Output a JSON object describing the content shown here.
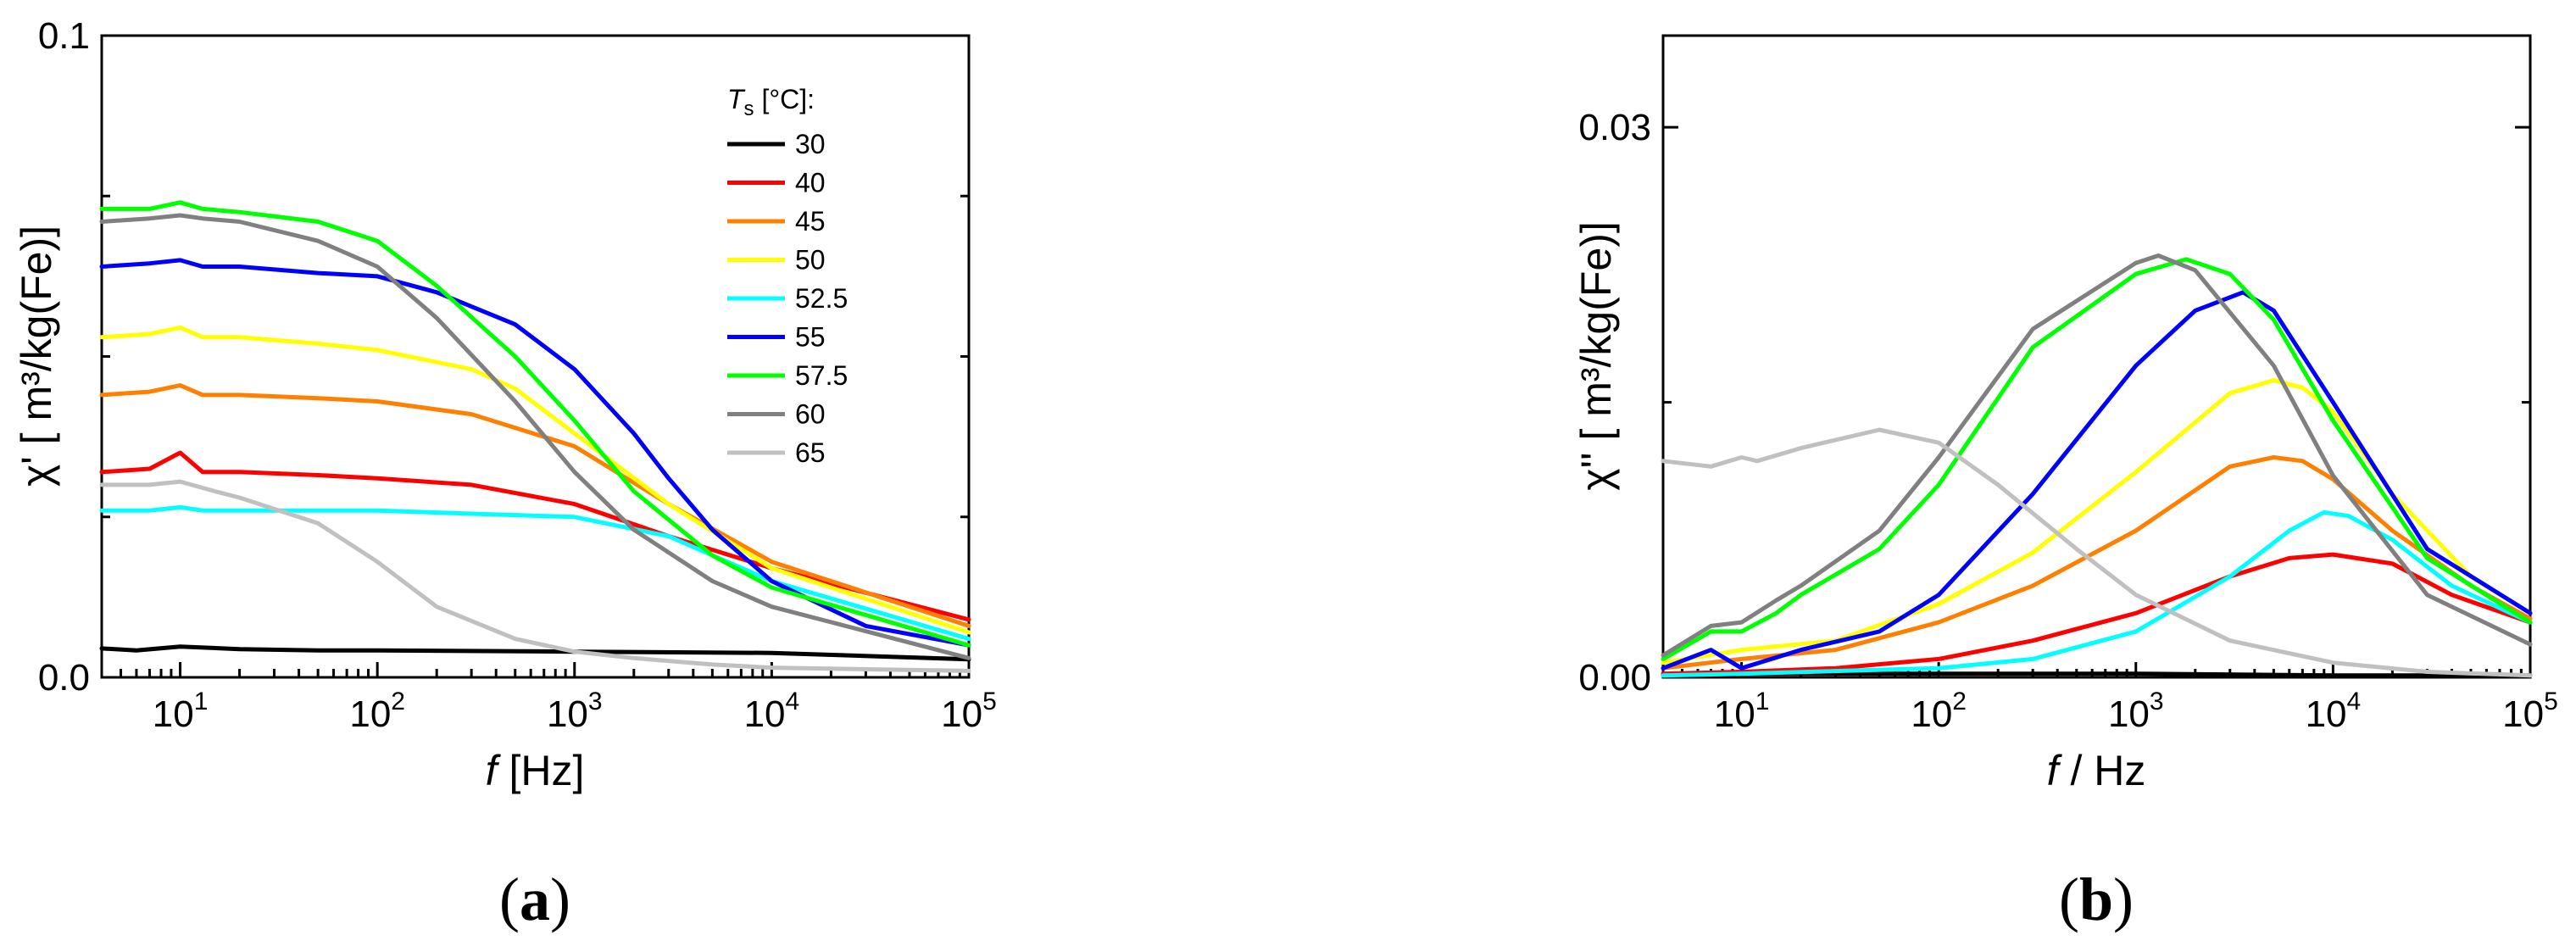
{
  "chart_data": [
    {
      "type": "line",
      "panel_label": "a",
      "xscale": "log",
      "xlim": [
        4,
        100000
      ],
      "ylim": [
        0.0,
        0.1
      ],
      "xlabel_italic": "f",
      "xlabel_rest": " [Hz]",
      "ylabel": "χ' [ m³/kg(Fe)]",
      "x_ticks": [
        {
          "value": 10,
          "base": "10",
          "exp": "1"
        },
        {
          "value": 100,
          "base": "10",
          "exp": "2"
        },
        {
          "value": 1000,
          "base": "10",
          "exp": "3"
        },
        {
          "value": 10000,
          "base": "10",
          "exp": "4"
        },
        {
          "value": 100000,
          "base": "10",
          "exp": "5"
        }
      ],
      "y_ticks": [
        {
          "value": 0.0,
          "label": "0.0"
        },
        {
          "value": 0.1,
          "label": "0.1"
        }
      ],
      "y_minor_ticks": [
        0.025,
        0.05,
        0.075
      ],
      "legend_title_italic": "T",
      "legend_title_sub": "s",
      "legend_title_rest": " [°C]:",
      "legend_position": "top-right",
      "series": [
        {
          "name": "30",
          "color": "#000000",
          "x": [
            4,
            6,
            10,
            20,
            50,
            100,
            1000,
            10000,
            100000
          ],
          "y": [
            0.0045,
            0.0042,
            0.0048,
            0.0044,
            0.0042,
            0.0042,
            0.004,
            0.0038,
            0.0028
          ]
        },
        {
          "name": "40",
          "color": "#ff0000",
          "x": [
            4,
            7,
            10,
            13,
            20,
            50,
            100,
            300,
            1000,
            3000,
            10000,
            100000
          ],
          "y": [
            0.032,
            0.0325,
            0.035,
            0.032,
            0.032,
            0.0315,
            0.031,
            0.03,
            0.027,
            0.022,
            0.017,
            0.009
          ]
        },
        {
          "name": "45",
          "color": "#ff8000",
          "x": [
            4,
            7,
            10,
            13,
            20,
            50,
            100,
            300,
            1000,
            3000,
            10000,
            100000
          ],
          "y": [
            0.044,
            0.0445,
            0.0455,
            0.044,
            0.044,
            0.0435,
            0.043,
            0.041,
            0.036,
            0.027,
            0.018,
            0.008
          ]
        },
        {
          "name": "50",
          "color": "#ffff00",
          "x": [
            4,
            7,
            10,
            13,
            20,
            50,
            100,
            300,
            500,
            1000,
            3000,
            10000,
            100000
          ],
          "y": [
            0.053,
            0.0535,
            0.0545,
            0.053,
            0.053,
            0.052,
            0.051,
            0.048,
            0.045,
            0.038,
            0.027,
            0.017,
            0.007
          ]
        },
        {
          "name": "52.5",
          "color": "#00ffff",
          "x": [
            4,
            7,
            10,
            13,
            20,
            50,
            100,
            300,
            1000,
            3000,
            10000,
            100000
          ],
          "y": [
            0.026,
            0.026,
            0.0265,
            0.026,
            0.026,
            0.026,
            0.026,
            0.0255,
            0.025,
            0.022,
            0.015,
            0.006
          ]
        },
        {
          "name": "55",
          "color": "#0000ff",
          "x": [
            4,
            7,
            10,
            13,
            20,
            50,
            100,
            200,
            500,
            1000,
            2000,
            3000,
            5000,
            10000,
            30000,
            100000
          ],
          "y": [
            0.064,
            0.0645,
            0.065,
            0.064,
            0.064,
            0.063,
            0.0625,
            0.06,
            0.055,
            0.048,
            0.038,
            0.031,
            0.023,
            0.015,
            0.008,
            0.005
          ]
        },
        {
          "name": "57.5",
          "color": "#00ff00",
          "x": [
            4,
            7,
            10,
            13,
            20,
            50,
            100,
            200,
            500,
            1000,
            2000,
            5000,
            10000,
            100000
          ],
          "y": [
            0.073,
            0.073,
            0.074,
            0.073,
            0.0725,
            0.071,
            0.068,
            0.061,
            0.05,
            0.04,
            0.029,
            0.019,
            0.014,
            0.005
          ]
        },
        {
          "name": "60",
          "color": "#808080",
          "x": [
            4,
            7,
            10,
            13,
            20,
            50,
            100,
            200,
            500,
            1000,
            2000,
            5000,
            10000,
            100000
          ],
          "y": [
            0.071,
            0.0715,
            0.072,
            0.0715,
            0.071,
            0.068,
            0.064,
            0.056,
            0.043,
            0.032,
            0.023,
            0.015,
            0.011,
            0.003
          ]
        },
        {
          "name": "65",
          "color": "#c0c0c0",
          "x": [
            4,
            7,
            10,
            15,
            20,
            50,
            100,
            200,
            500,
            1000,
            2000,
            5000,
            10000,
            100000
          ],
          "y": [
            0.03,
            0.03,
            0.0305,
            0.029,
            0.028,
            0.024,
            0.018,
            0.011,
            0.006,
            0.004,
            0.003,
            0.002,
            0.0015,
            0.001
          ]
        }
      ]
    },
    {
      "type": "line",
      "panel_label": "b",
      "xscale": "log",
      "xlim": [
        4,
        100000
      ],
      "ylim": [
        0.0,
        0.035
      ],
      "xlabel_italic": "f",
      "xlabel_rest": " / Hz",
      "ylabel": "χ'' [ m³/kg(Fe)]",
      "x_ticks": [
        {
          "value": 10,
          "base": "10",
          "exp": "1"
        },
        {
          "value": 100,
          "base": "10",
          "exp": "2"
        },
        {
          "value": 1000,
          "base": "10",
          "exp": "3"
        },
        {
          "value": 10000,
          "base": "10",
          "exp": "4"
        },
        {
          "value": 100000,
          "base": "10",
          "exp": "5"
        }
      ],
      "y_ticks": [
        {
          "value": 0.0,
          "label": "0.00"
        },
        {
          "value": 0.03,
          "label": "0.03"
        }
      ],
      "y_minor_ticks": [
        0.015
      ],
      "series": [
        {
          "name": "30",
          "color": "#000000",
          "x": [
            4,
            10,
            100,
            1000,
            10000,
            100000
          ],
          "y": [
            0.0001,
            0.0002,
            0.0002,
            0.0002,
            0.0001,
            0.0001
          ]
        },
        {
          "name": "40",
          "color": "#ff0000",
          "x": [
            4,
            10,
            30,
            100,
            300,
            1000,
            3000,
            6000,
            10000,
            20000,
            40000,
            100000
          ],
          "y": [
            0.0002,
            0.0003,
            0.0005,
            0.001,
            0.002,
            0.0035,
            0.0055,
            0.0065,
            0.0067,
            0.0062,
            0.0045,
            0.003
          ]
        },
        {
          "name": "45",
          "color": "#ff8000",
          "x": [
            4,
            10,
            30,
            100,
            300,
            1000,
            3000,
            5000,
            7000,
            10000,
            20000,
            50000,
            100000
          ],
          "y": [
            0.0005,
            0.001,
            0.0015,
            0.003,
            0.005,
            0.008,
            0.0115,
            0.012,
            0.0118,
            0.0108,
            0.008,
            0.005,
            0.0032
          ]
        },
        {
          "name": "50",
          "color": "#ffff00",
          "x": [
            4,
            10,
            30,
            100,
            300,
            1000,
            3000,
            5000,
            7000,
            10000,
            20000,
            50000,
            100000
          ],
          "y": [
            0.0008,
            0.0015,
            0.002,
            0.004,
            0.0068,
            0.0112,
            0.0155,
            0.0162,
            0.0158,
            0.0145,
            0.01,
            0.0055,
            0.0035
          ]
        },
        {
          "name": "52.5",
          "color": "#00ffff",
          "x": [
            4,
            10,
            100,
            300,
            1000,
            3000,
            6000,
            9000,
            12000,
            20000,
            40000,
            100000
          ],
          "y": [
            0.0001,
            0.0002,
            0.0005,
            0.001,
            0.0025,
            0.0055,
            0.008,
            0.009,
            0.0088,
            0.0075,
            0.005,
            0.003
          ]
        },
        {
          "name": "55",
          "color": "#0000ff",
          "x": [
            4,
            7,
            10,
            20,
            50,
            100,
            300,
            1000,
            2000,
            3500,
            5000,
            10000,
            30000,
            100000
          ],
          "y": [
            0.0005,
            0.0015,
            0.0005,
            0.0015,
            0.0025,
            0.0045,
            0.01,
            0.017,
            0.02,
            0.021,
            0.02,
            0.015,
            0.007,
            0.0035
          ]
        },
        {
          "name": "57.5",
          "color": "#00ff00",
          "x": [
            4,
            7,
            10,
            15,
            20,
            50,
            100,
            300,
            1000,
            1800,
            3000,
            5000,
            10000,
            30000,
            100000
          ],
          "y": [
            0.001,
            0.0025,
            0.0025,
            0.0035,
            0.0045,
            0.007,
            0.0105,
            0.018,
            0.022,
            0.0228,
            0.022,
            0.0195,
            0.014,
            0.0065,
            0.003
          ]
        },
        {
          "name": "60",
          "color": "#808080",
          "x": [
            4,
            7,
            10,
            15,
            20,
            50,
            100,
            300,
            1000,
            1300,
            2000,
            5000,
            10000,
            30000,
            100000
          ],
          "y": [
            0.0012,
            0.0028,
            0.003,
            0.0042,
            0.005,
            0.008,
            0.012,
            0.019,
            0.0226,
            0.023,
            0.0222,
            0.017,
            0.011,
            0.0045,
            0.0018
          ]
        },
        {
          "name": "65",
          "color": "#c0c0c0",
          "x": [
            4,
            7,
            10,
            12,
            20,
            50,
            100,
            200,
            500,
            1000,
            3000,
            10000,
            30000,
            100000
          ],
          "y": [
            0.0118,
            0.0115,
            0.012,
            0.0118,
            0.0125,
            0.0135,
            0.0128,
            0.0105,
            0.007,
            0.0045,
            0.002,
            0.0008,
            0.0003,
            0.0001
          ]
        }
      ]
    }
  ]
}
